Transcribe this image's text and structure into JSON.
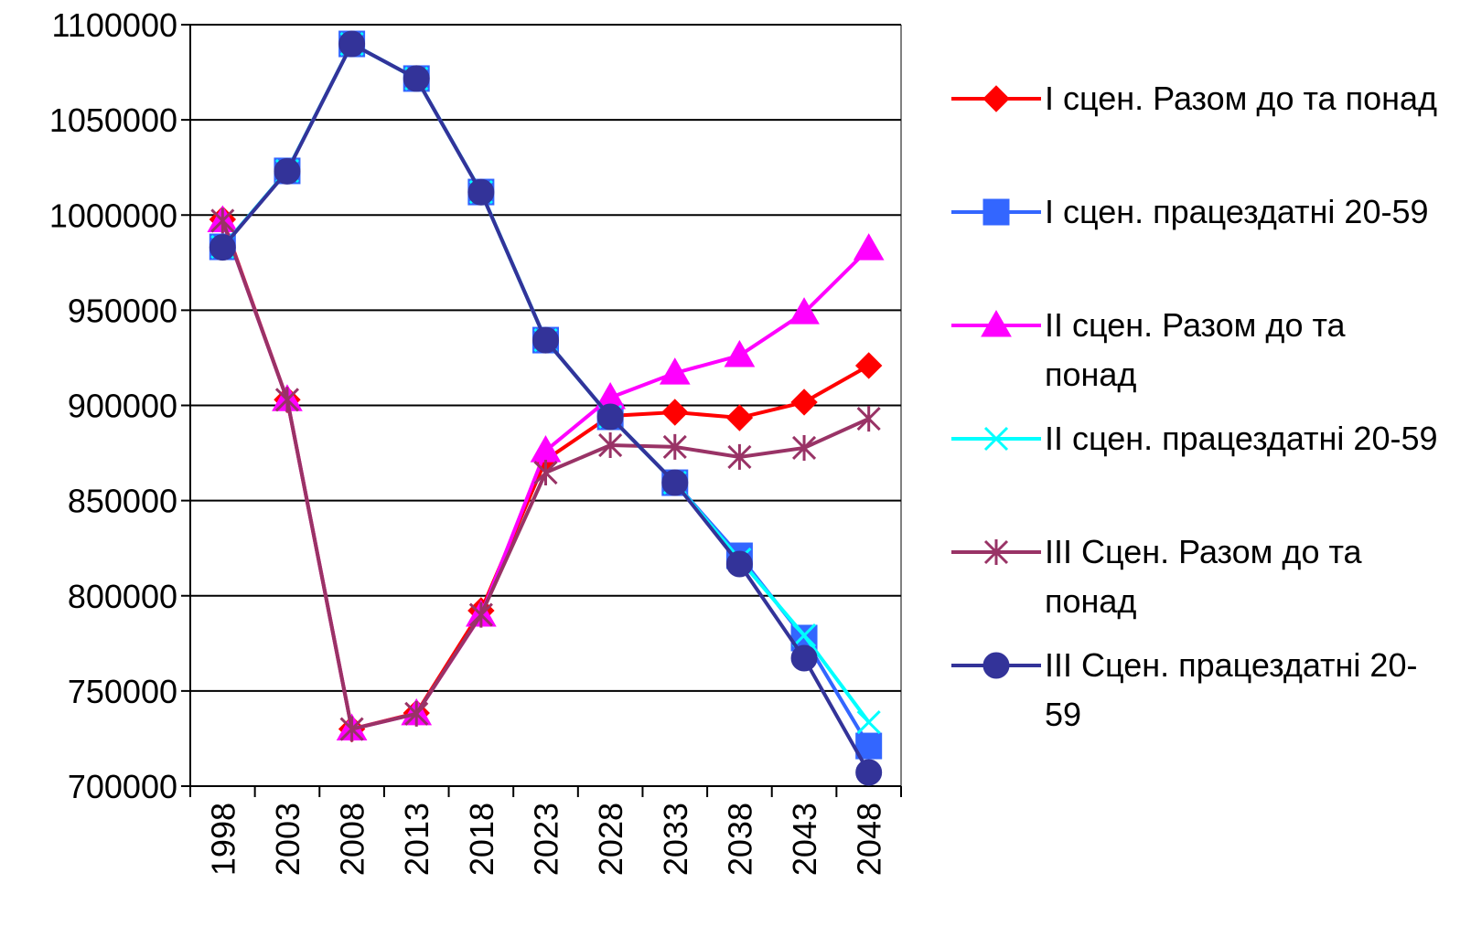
{
  "chart_data": {
    "type": "line",
    "categories": [
      "1998",
      "2003",
      "2008",
      "2013",
      "2018",
      "2023",
      "2028",
      "2033",
      "2038",
      "2043",
      "2048"
    ],
    "ylim": [
      700000,
      1100000
    ],
    "yticks": [
      700000,
      750000,
      800000,
      850000,
      900000,
      950000,
      1000000,
      1050000,
      1100000
    ],
    "grid": true,
    "legend": "right",
    "series": [
      {
        "name": "I сцен. Разом до та понад",
        "color": "#ff0000",
        "marker": "diamond",
        "values": [
          997700,
          903000,
          730000,
          738400,
          792200,
          871400,
          894500,
          896400,
          893500,
          901700,
          920900
        ]
      },
      {
        "name": "I сцен. працездатні 20-59",
        "color": "#3366ff",
        "marker": "square",
        "values": [
          983300,
          1023200,
          1089900,
          1071700,
          1012100,
          934300,
          894000,
          859400,
          821000,
          777800,
          721100
        ]
      },
      {
        "name": "II сцен. Разом до та понад",
        "color": "#ff00ff",
        "marker": "triangle",
        "values": [
          997000,
          903000,
          730000,
          738000,
          789800,
          876200,
          904100,
          917000,
          926200,
          948700,
          982300
        ]
      },
      {
        "name": "II сцен. працездатні 20-59",
        "color": "#00ffff",
        "marker": "x",
        "values": [
          983300,
          1023200,
          1089900,
          1071700,
          1012100,
          934300,
          894000,
          859400,
          819100,
          779200,
          733600
        ]
      },
      {
        "name": "III Сцен. Разом до та понад",
        "color": "#993366",
        "marker": "star",
        "values": [
          997000,
          903000,
          730000,
          738000,
          790000,
          864700,
          879100,
          878200,
          872900,
          877700,
          893000
        ]
      },
      {
        "name": "III Сцен. працездатні 20-59",
        "color": "#333399",
        "marker": "circle",
        "values": [
          983000,
          1023000,
          1089900,
          1071700,
          1012000,
          934300,
          894000,
          859400,
          816700,
          767200,
          707200
        ]
      }
    ]
  }
}
